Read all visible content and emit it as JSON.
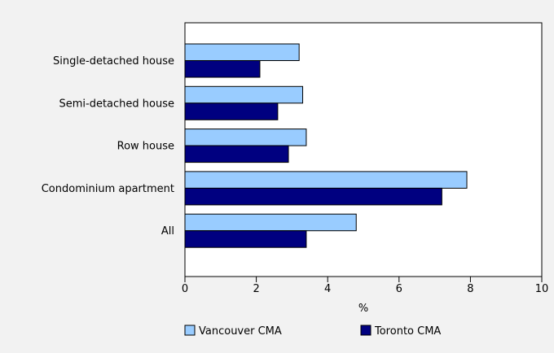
{
  "chart_data": {
    "type": "bar",
    "orientation": "horizontal",
    "categories": [
      "Single-detached house",
      "Semi-detached house",
      "Row house",
      "Condominium apartment",
      "All"
    ],
    "series": [
      {
        "name": "Vancouver CMA",
        "color": "#99ccff",
        "values": [
          3.2,
          3.3,
          3.4,
          7.9,
          4.8
        ]
      },
      {
        "name": "Toronto CMA",
        "color": "#000080",
        "values": [
          2.1,
          2.6,
          2.9,
          7.2,
          3.4
        ]
      }
    ],
    "xlabel": "%",
    "ylabel": "",
    "xlim": [
      0,
      10
    ],
    "xticks": [
      0,
      2,
      4,
      6,
      8,
      10
    ],
    "grid": false,
    "legend_position": "bottom"
  }
}
